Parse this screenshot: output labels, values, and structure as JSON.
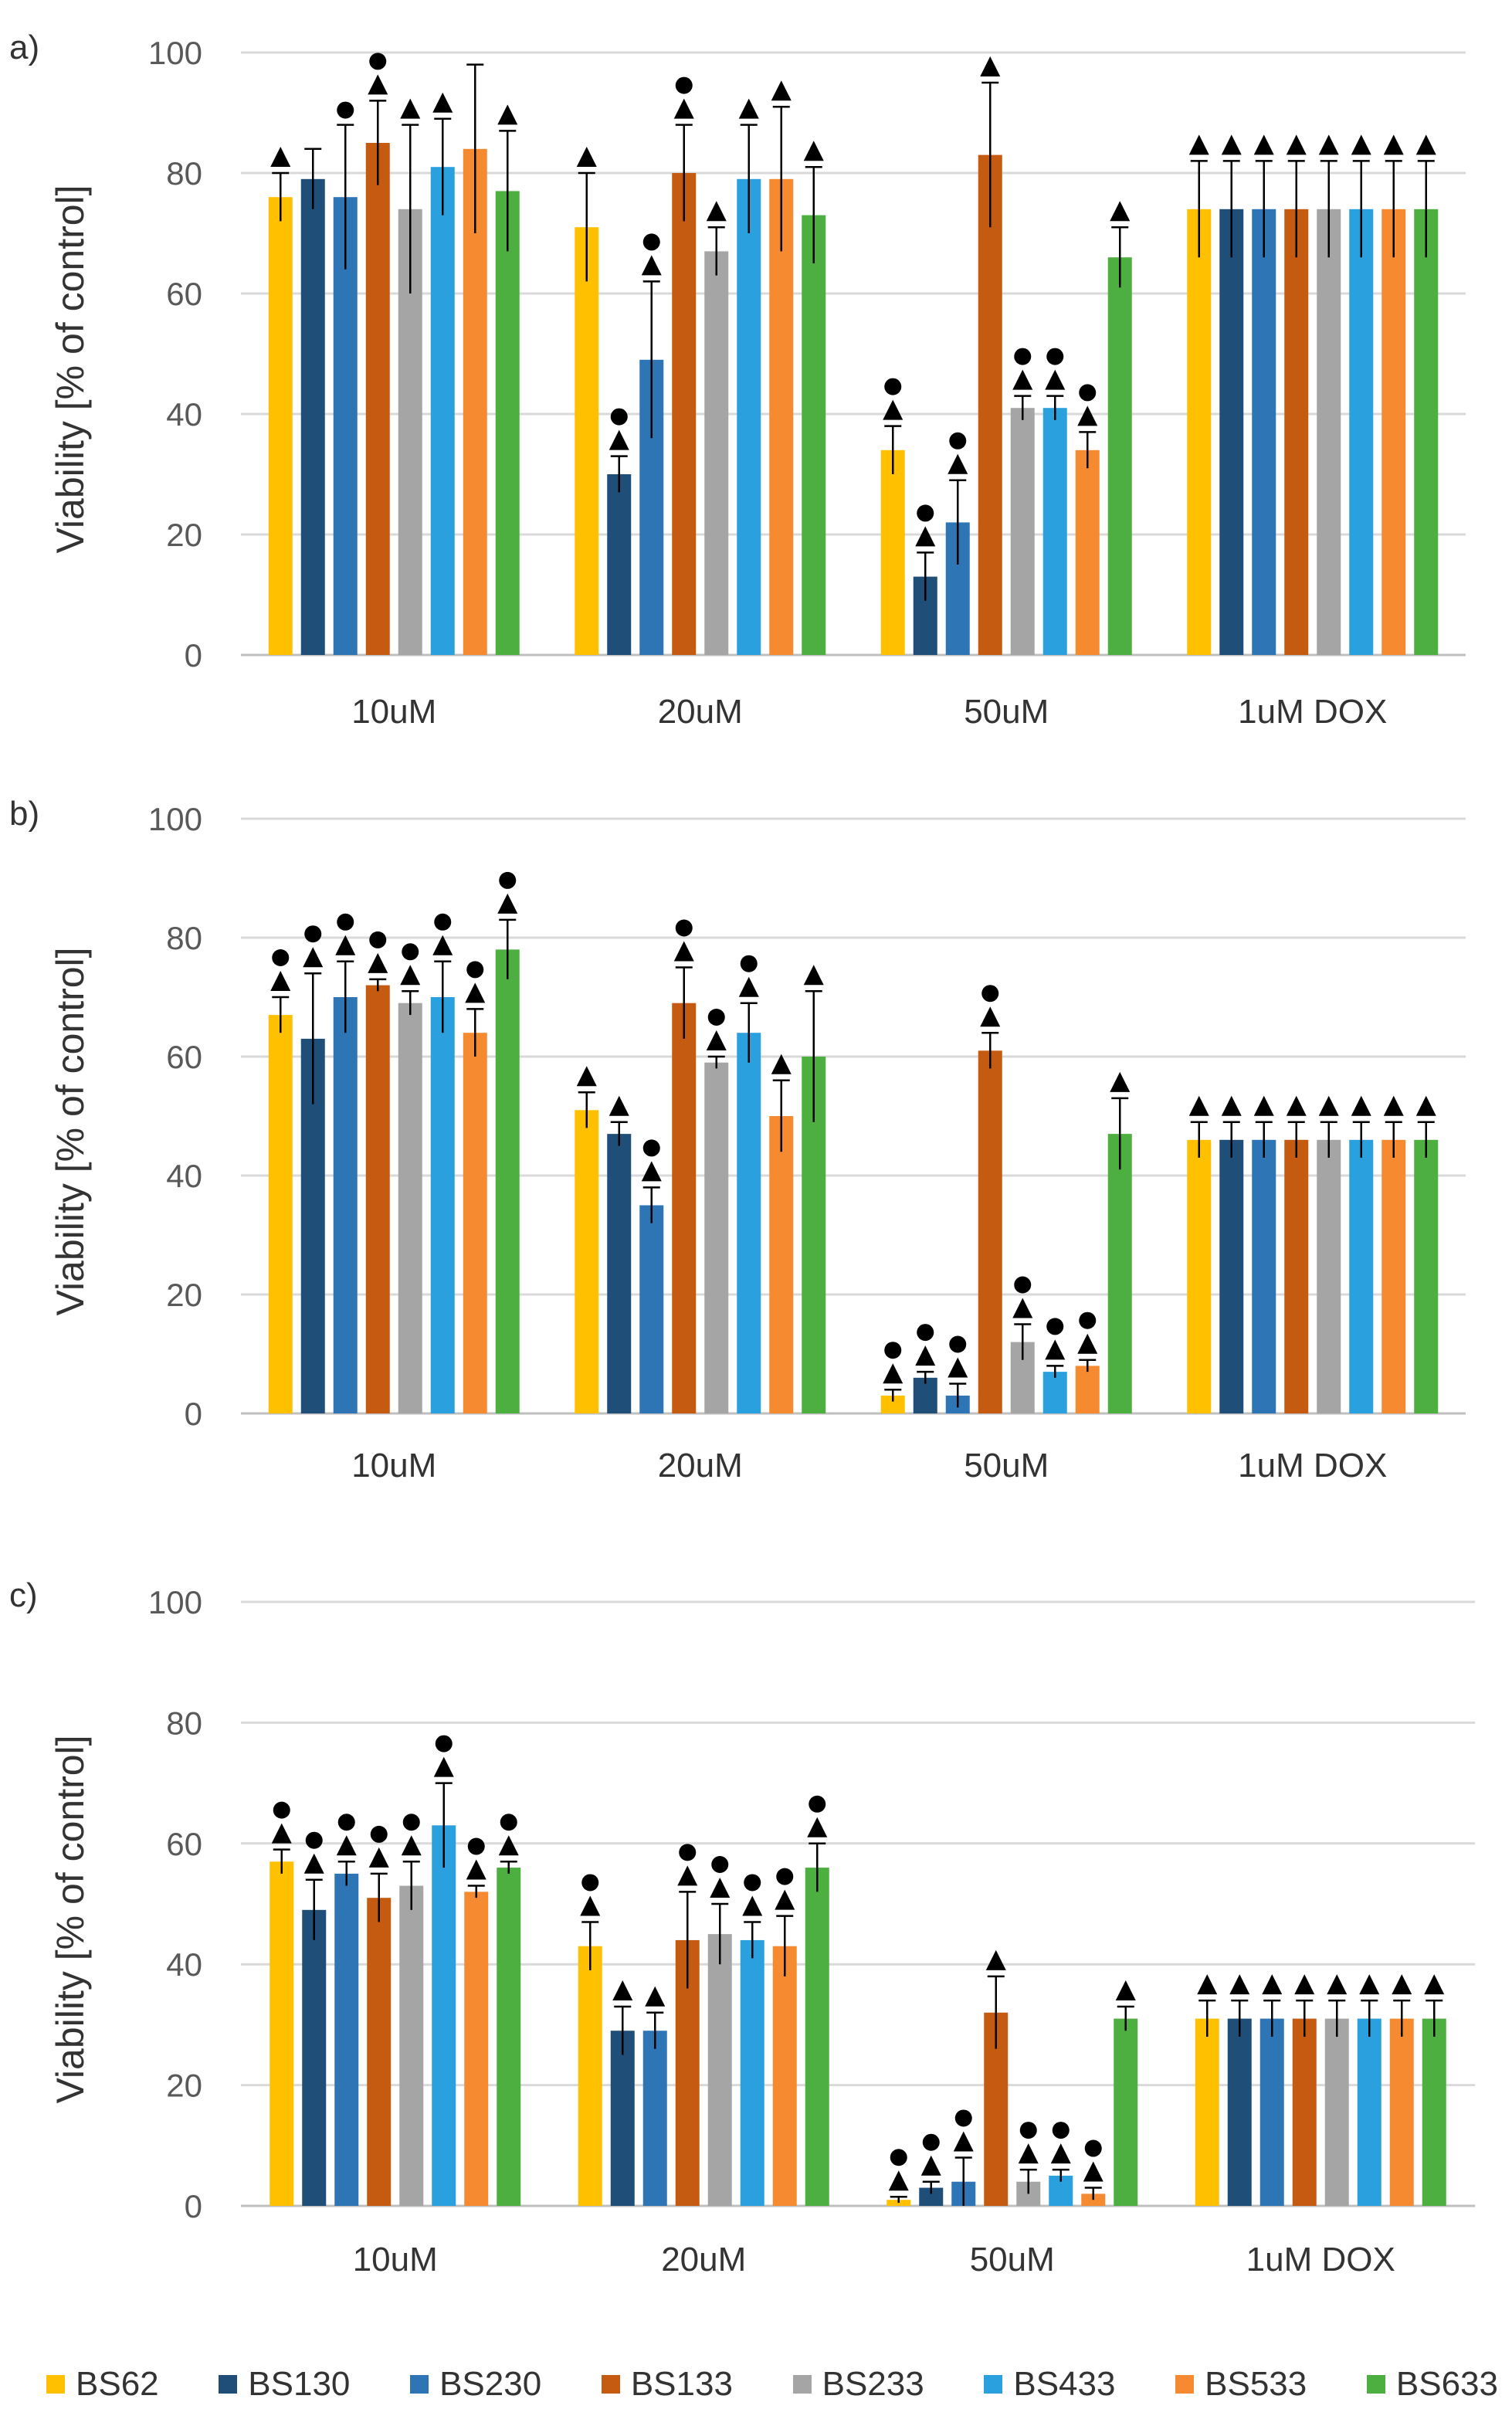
{
  "legend": {
    "items": [
      {
        "label": "BS62",
        "color": "#FFC000"
      },
      {
        "label": "BS130",
        "color": "#1F4E79"
      },
      {
        "label": "BS230",
        "color": "#2E75B6"
      },
      {
        "label": "BS133",
        "color": "#C55A11"
      },
      {
        "label": "BS233",
        "color": "#A5A5A5"
      },
      {
        "label": "BS433",
        "color": "#2BA0DE"
      },
      {
        "label": "BS533",
        "color": "#F58A31"
      },
      {
        "label": "BS633",
        "color": "#4DAF3F"
      }
    ]
  },
  "chart_data": [
    {
      "panel": "a)",
      "type": "bar",
      "ylabel": "Viability [% of control]",
      "ylim": [
        0,
        100
      ],
      "yticks": [
        0,
        20,
        40,
        60,
        80,
        100
      ],
      "categories": [
        "10uM",
        "20uM",
        "50uM",
        "1uM DOX"
      ],
      "series": [
        {
          "name": "BS62",
          "values": [
            76,
            71,
            34,
            74
          ],
          "errors": [
            4,
            9,
            4,
            8
          ],
          "markers": [
            "triangle",
            "triangle",
            "circle-triangle",
            "triangle"
          ]
        },
        {
          "name": "BS130",
          "values": [
            79,
            30,
            13,
            74
          ],
          "errors": [
            5,
            3,
            4,
            8
          ],
          "markers": [
            "none",
            "circle-triangle",
            "circle-triangle",
            "triangle"
          ]
        },
        {
          "name": "BS230",
          "values": [
            76,
            49,
            22,
            74
          ],
          "errors": [
            12,
            13,
            7,
            8
          ],
          "markers": [
            "circle",
            "circle-triangle",
            "circle-triangle",
            "triangle"
          ]
        },
        {
          "name": "BS133",
          "values": [
            85,
            80,
            83,
            74
          ],
          "errors": [
            7,
            8,
            12,
            8
          ],
          "markers": [
            "circle-triangle",
            "circle-triangle",
            "triangle",
            "triangle"
          ]
        },
        {
          "name": "BS233",
          "values": [
            74,
            67,
            41,
            74
          ],
          "errors": [
            14,
            4,
            2,
            8
          ],
          "markers": [
            "triangle",
            "triangle",
            "circle-triangle",
            "triangle"
          ]
        },
        {
          "name": "BS433",
          "values": [
            81,
            79,
            41,
            74
          ],
          "errors": [
            8,
            9,
            2,
            8
          ],
          "markers": [
            "triangle",
            "triangle",
            "circle-triangle",
            "triangle"
          ]
        },
        {
          "name": "BS533",
          "values": [
            84,
            79,
            34,
            74
          ],
          "errors": [
            14,
            12,
            3,
            8
          ],
          "markers": [
            "none",
            "triangle",
            "circle-triangle",
            "triangle"
          ]
        },
        {
          "name": "BS633",
          "values": [
            77,
            73,
            66,
            74
          ],
          "errors": [
            10,
            8,
            5,
            8
          ],
          "markers": [
            "triangle",
            "triangle",
            "triangle",
            "triangle"
          ]
        }
      ]
    },
    {
      "panel": "b)",
      "type": "bar",
      "ylabel": "Viability [% of control]",
      "ylim": [
        0,
        100
      ],
      "yticks": [
        0,
        20,
        40,
        60,
        80,
        100
      ],
      "categories": [
        "10uM",
        "20uM",
        "50uM",
        "1uM DOX"
      ],
      "series": [
        {
          "name": "BS62",
          "values": [
            67,
            51,
            3,
            46
          ],
          "errors": [
            3,
            3,
            1,
            3
          ],
          "markers": [
            "circle-triangle",
            "triangle",
            "circle-triangle",
            "triangle"
          ]
        },
        {
          "name": "BS130",
          "values": [
            63,
            47,
            6,
            46
          ],
          "errors": [
            11,
            2,
            1,
            3
          ],
          "markers": [
            "circle-triangle",
            "triangle",
            "circle-triangle",
            "triangle"
          ]
        },
        {
          "name": "BS230",
          "values": [
            70,
            35,
            3,
            46
          ],
          "errors": [
            6,
            3,
            2,
            3
          ],
          "markers": [
            "circle-triangle",
            "circle-triangle",
            "circle-triangle",
            "triangle"
          ]
        },
        {
          "name": "BS133",
          "values": [
            72,
            69,
            61,
            46
          ],
          "errors": [
            1,
            6,
            3,
            3
          ],
          "markers": [
            "circle-triangle",
            "circle-triangle",
            "circle-triangle",
            "triangle"
          ]
        },
        {
          "name": "BS233",
          "values": [
            69,
            59,
            12,
            46
          ],
          "errors": [
            2,
            1,
            3,
            3
          ],
          "markers": [
            "circle-triangle",
            "circle-triangle",
            "circle-triangle",
            "triangle"
          ]
        },
        {
          "name": "BS433",
          "values": [
            70,
            64,
            7,
            46
          ],
          "errors": [
            6,
            5,
            1,
            3
          ],
          "markers": [
            "circle-triangle",
            "circle-triangle",
            "circle-triangle",
            "triangle"
          ]
        },
        {
          "name": "BS533",
          "values": [
            64,
            50,
            8,
            46
          ],
          "errors": [
            4,
            6,
            1,
            3
          ],
          "markers": [
            "circle-triangle",
            "triangle",
            "circle-triangle",
            "triangle"
          ]
        },
        {
          "name": "BS633",
          "values": [
            78,
            60,
            47,
            46
          ],
          "errors": [
            5,
            11,
            6,
            3
          ],
          "markers": [
            "circle-triangle",
            "triangle",
            "triangle",
            "triangle"
          ]
        }
      ]
    },
    {
      "panel": "c)",
      "type": "bar",
      "ylabel": "Viability [% of control]",
      "ylim": [
        0,
        100
      ],
      "yticks": [
        0,
        20,
        40,
        60,
        80,
        100
      ],
      "categories": [
        "10uM",
        "20uM",
        "50uM",
        "1uM DOX"
      ],
      "series": [
        {
          "name": "BS62",
          "values": [
            57,
            43,
            1,
            31
          ],
          "errors": [
            2,
            4,
            0.5,
            3
          ],
          "markers": [
            "circle-triangle",
            "circle-triangle",
            "circle-triangle",
            "triangle"
          ]
        },
        {
          "name": "BS130",
          "values": [
            49,
            29,
            3,
            31
          ],
          "errors": [
            5,
            4,
            1,
            3
          ],
          "markers": [
            "circle-triangle",
            "triangle",
            "circle-triangle",
            "triangle"
          ]
        },
        {
          "name": "BS230",
          "values": [
            55,
            29,
            4,
            31
          ],
          "errors": [
            2,
            3,
            4,
            3
          ],
          "markers": [
            "circle-triangle",
            "triangle",
            "circle-triangle",
            "triangle"
          ]
        },
        {
          "name": "BS133",
          "values": [
            51,
            44,
            32,
            31
          ],
          "errors": [
            4,
            8,
            6,
            3
          ],
          "markers": [
            "circle-triangle",
            "circle-triangle",
            "triangle",
            "triangle"
          ]
        },
        {
          "name": "BS233",
          "values": [
            53,
            45,
            4,
            31
          ],
          "errors": [
            4,
            5,
            2,
            3
          ],
          "markers": [
            "circle-triangle",
            "circle-triangle",
            "circle-triangle",
            "triangle"
          ]
        },
        {
          "name": "BS433",
          "values": [
            63,
            44,
            5,
            31
          ],
          "errors": [
            7,
            3,
            1,
            3
          ],
          "markers": [
            "circle-triangle",
            "circle-triangle",
            "circle-triangle",
            "triangle"
          ]
        },
        {
          "name": "BS533",
          "values": [
            52,
            43,
            2,
            31
          ],
          "errors": [
            1,
            5,
            1,
            3
          ],
          "markers": [
            "circle-triangle",
            "circle-triangle",
            "circle-triangle",
            "triangle"
          ]
        },
        {
          "name": "BS633",
          "values": [
            56,
            56,
            31,
            31
          ],
          "errors": [
            1,
            4,
            2,
            3
          ],
          "markers": [
            "circle-triangle",
            "circle-triangle",
            "triangle",
            "triangle"
          ]
        }
      ]
    }
  ]
}
